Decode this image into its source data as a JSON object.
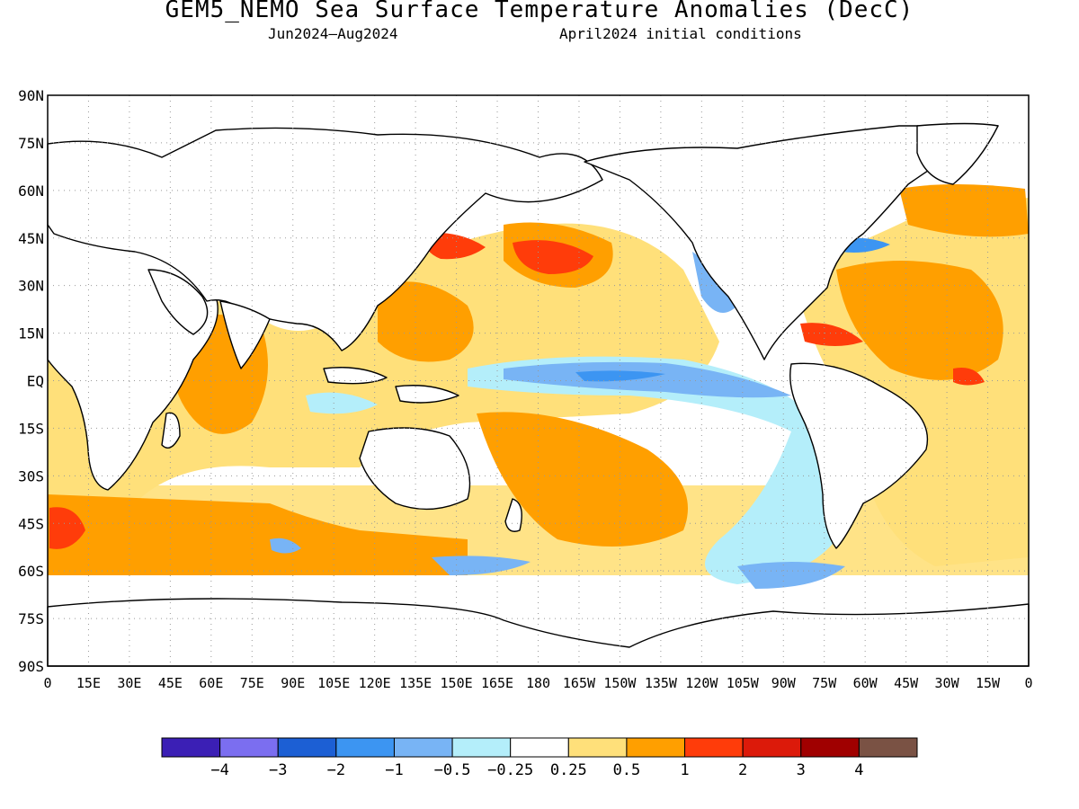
{
  "title": "GEM5_NEMO Sea Surface Temperature Anomalies (DecC)",
  "subtitle_period": "Jun2024—Aug2024",
  "subtitle_init": "April2024 initial conditions",
  "axes": {
    "y_ticks": [
      "90N",
      "75N",
      "60N",
      "45N",
      "30N",
      "15N",
      "EQ",
      "15S",
      "30S",
      "45S",
      "60S",
      "75S",
      "90S"
    ],
    "x_ticks": [
      "0",
      "15E",
      "30E",
      "45E",
      "60E",
      "75E",
      "90E",
      "105E",
      "120E",
      "135E",
      "150E",
      "165E",
      "180",
      "165W",
      "150W",
      "135W",
      "120W",
      "105W",
      "90W",
      "75W",
      "60W",
      "45W",
      "30W",
      "15W",
      "0"
    ]
  },
  "legend": {
    "colors": [
      "#3b1fb5",
      "#7b6ef0",
      "#1c5fd4",
      "#3c95f2",
      "#78b4f5",
      "#b4eefa",
      "#ffffff",
      "#ffe07a",
      "#ff9f00",
      "#ff3c0a",
      "#dc1a0a",
      "#a00000",
      "#7a5244"
    ],
    "labels": [
      "−4",
      "−3",
      "−2",
      "−1",
      "−0.5",
      "−0.25",
      "0.25",
      "0.5",
      "1",
      "2",
      "3",
      "4"
    ]
  }
}
